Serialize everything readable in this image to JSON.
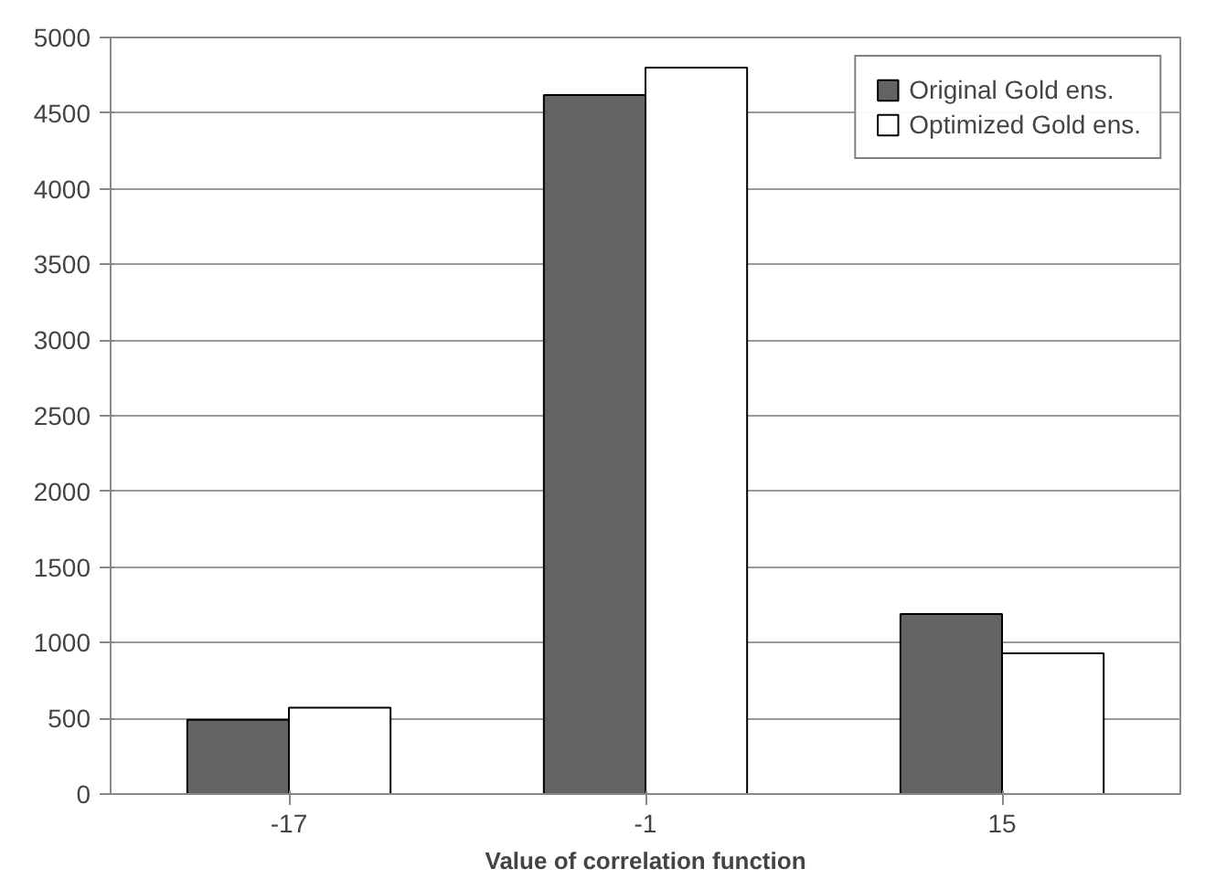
{
  "chart_data": {
    "type": "bar",
    "xlabel": "Value of correlation function",
    "categories": [
      "-17",
      "-1",
      "15"
    ],
    "series": [
      {
        "name": "Original Gold ens.",
        "color": "#636363",
        "values": [
          490,
          4620,
          1190
        ]
      },
      {
        "name": "Optimized Gold ens.",
        "color": "#ffffff",
        "values": [
          570,
          4800,
          930
        ]
      }
    ],
    "ylim": [
      0,
      5000
    ],
    "yticks": [
      0,
      500,
      1000,
      1500,
      2000,
      2500,
      3000,
      3500,
      4000,
      4500,
      5000
    ],
    "grid": "y",
    "legend": "top right"
  }
}
